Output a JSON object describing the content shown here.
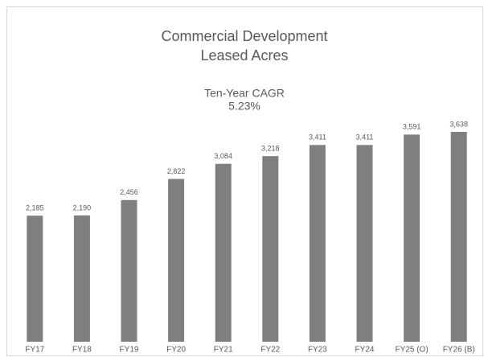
{
  "chart_data": {
    "type": "bar",
    "title": [
      "Commercial Development",
      "Leased Acres"
    ],
    "subtitle": [
      "Ten-Year CAGR",
      "5.23%"
    ],
    "categories": [
      "FY17",
      "FY18",
      "FY19",
      "FY20",
      "FY21",
      "FY22",
      "FY23",
      "FY24",
      "FY25 (O)",
      "FY26 (B)"
    ],
    "values": [
      2185,
      2190,
      2456,
      2822,
      3084,
      3218,
      3411,
      3411,
      3591,
      3638
    ],
    "value_labels": [
      "2,185",
      "2,190",
      "2,456",
      "2,822",
      "3,084",
      "3,218",
      "3,411",
      "3,411",
      "3,591",
      "3,638"
    ],
    "color": "#7f7f7f"
  }
}
